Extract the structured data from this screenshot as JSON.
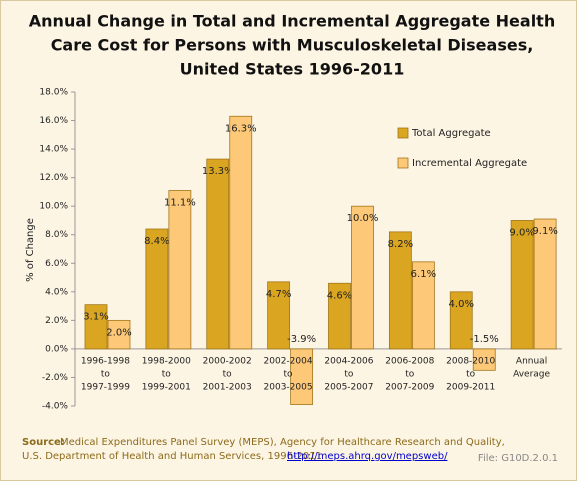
{
  "chart_data": {
    "type": "bar",
    "title": [
      "Annual Change in Total and Incremental Aggregate Health",
      "Care Cost for Persons with Musculoskeletal Diseases,",
      "United States 1996-2011"
    ],
    "y_label": "% of Change",
    "categories": [
      [
        "1996-1998",
        "to",
        "1997-1999"
      ],
      [
        "1998-2000",
        "to",
        "1999-2001"
      ],
      [
        "2000-2002",
        "to",
        "2001-2003"
      ],
      [
        "2002-2004",
        "to",
        "2003-2005"
      ],
      [
        "2004-2006",
        "to",
        "2005-2007"
      ],
      [
        "2006-2008",
        "to",
        "2007-2009"
      ],
      [
        "2008-2010",
        "to",
        "2009-2011"
      ],
      [
        "Annual",
        "Average"
      ]
    ],
    "series": [
      {
        "name": "Total Aggregate",
        "color": "#daa520",
        "values": [
          3.1,
          8.4,
          13.3,
          4.7,
          4.6,
          8.2,
          4.0,
          9.0
        ],
        "value_labels": [
          "3.1%",
          "8.4%",
          "13.3%",
          "4.7%",
          "4.6%",
          "8.2%",
          "4.0%",
          "9.0%"
        ]
      },
      {
        "name": "Incremental Aggregate",
        "color": "#fdc878",
        "values": [
          2.0,
          11.1,
          16.3,
          -3.9,
          10.0,
          6.1,
          -1.5,
          9.1
        ],
        "value_labels": [
          "2.0%",
          "11.1%",
          "16.3%",
          "-3.9%",
          "10.0%",
          "6.1%",
          "-1.5%",
          "9.1%"
        ]
      }
    ],
    "ylim": [
      -4,
      18
    ],
    "yticks": [
      {
        "value": -4,
        "label": "-4.0%"
      },
      {
        "value": -2,
        "label": "-2.0%"
      },
      {
        "value": 0,
        "label": "0.0%"
      },
      {
        "value": 2,
        "label": "2.0%"
      },
      {
        "value": 4,
        "label": "4.0%"
      },
      {
        "value": 6,
        "label": "6.0%"
      },
      {
        "value": 8,
        "label": "8.0%"
      },
      {
        "value": 10,
        "label": "10.0%"
      },
      {
        "value": 12,
        "label": "12.0%"
      },
      {
        "value": 14,
        "label": "14.0%"
      },
      {
        "value": 16,
        "label": "16.0%"
      },
      {
        "value": 18,
        "label": "18.0%"
      }
    ],
    "grid": false,
    "legend_position": "upper-right",
    "source": {
      "label": "Source:",
      "line1": "Medical Expenditures Panel Survey (MEPS), Agency for Healthcare Research and Quality,",
      "line2": "U.S. Department of Health and Human Services, 1996-2011",
      "url": "http://meps.ahrq.gov/mepsweb/"
    },
    "file_label": "File: G10D.2.0.1"
  }
}
